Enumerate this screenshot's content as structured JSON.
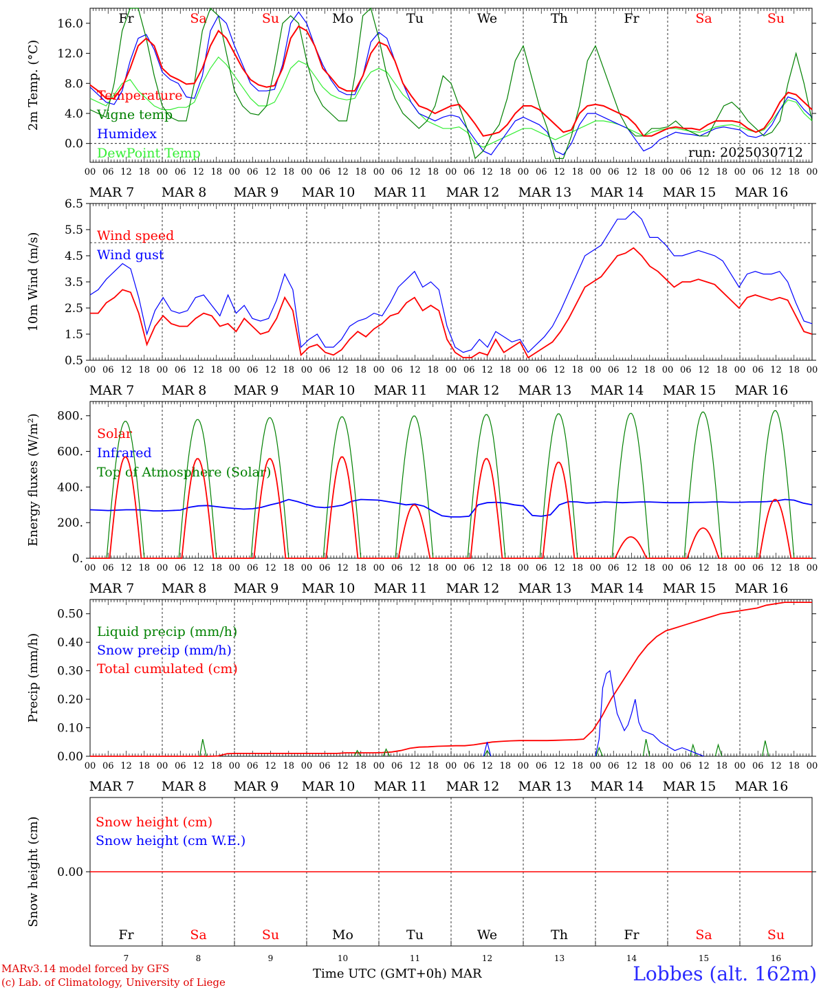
{
  "chart_data": [
    {
      "type": "line",
      "ylabel": "2m Temp. (°C)",
      "ylim": [
        -2.5,
        18
      ],
      "yticks": [
        "16.0",
        "12.0",
        "8.0",
        "4.0",
        "0.0"
      ],
      "ytick_values": [
        16,
        12,
        8,
        4,
        0
      ],
      "reference_line": 0,
      "annotation": "run: 2025030712",
      "series": [
        {
          "name": "Temperature",
          "color": "#ff0000",
          "y": [
            7.8,
            7,
            6,
            6,
            7.5,
            10,
            13,
            14,
            13,
            10,
            9,
            8.5,
            7.9,
            8,
            10,
            13,
            15,
            14,
            12,
            10,
            8.5,
            7.8,
            7.5,
            7.7,
            10,
            14,
            15.6,
            15,
            13,
            10,
            8.8,
            7.5,
            7,
            7,
            9,
            12,
            13.5,
            13,
            11,
            8,
            6.4,
            5,
            4.6,
            4,
            4.5,
            5,
            5.2,
            4,
            2.6,
            1,
            1.2,
            1.5,
            2.5,
            4,
            5,
            5,
            4.5,
            3.5,
            2.5,
            1.5,
            1.8,
            4,
            5,
            5.2,
            5,
            4.5,
            4,
            3.5,
            2.5,
            1,
            1,
            1.5,
            2,
            2.2,
            2,
            2,
            1.8,
            2.5,
            3,
            3,
            3,
            2.8,
            2,
            1.5,
            2,
            3.5,
            5.5,
            6.8,
            6.5,
            5.5,
            4.5
          ]
        },
        {
          "name": "Vigne temp",
          "color": "#008000",
          "y": [
            4.5,
            4,
            3.5,
            8,
            15,
            18,
            18,
            14,
            9,
            5,
            3.5,
            3,
            3,
            8,
            15,
            18,
            17,
            12,
            7,
            5,
            4,
            3.8,
            5,
            10,
            16,
            17,
            16,
            11,
            7,
            5,
            4,
            3,
            3,
            9,
            17,
            18,
            14,
            9,
            6,
            4,
            3,
            2,
            3,
            5,
            9,
            8,
            5,
            2,
            -2,
            -1,
            1,
            2.5,
            6,
            11,
            13,
            9,
            5,
            2,
            -2,
            -2,
            1,
            5,
            11,
            13,
            10,
            7,
            4,
            2,
            1,
            1,
            2,
            2,
            2.2,
            3,
            2,
            1.5,
            1,
            1,
            3,
            5,
            5.5,
            4.5,
            3,
            2,
            1,
            1.5,
            3,
            8,
            12,
            8,
            3
          ]
        },
        {
          "name": "Humidex",
          "color": "#0000ff",
          "y": [
            7.5,
            6.5,
            5.5,
            5.2,
            7,
            11,
            14,
            14.5,
            12.5,
            9.5,
            8.5,
            8,
            6.2,
            6,
            9,
            15,
            17,
            16,
            13,
            10.5,
            8,
            7,
            7,
            7.2,
            10.5,
            16,
            17.5,
            16,
            13,
            10.5,
            8.5,
            7,
            6.5,
            6.5,
            9,
            13.5,
            14.8,
            14,
            11,
            8,
            5.5,
            4,
            3.5,
            3,
            3.5,
            3.8,
            3.5,
            2,
            0.5,
            -1,
            -1.5,
            0,
            1.5,
            3,
            3.5,
            3,
            2.5,
            1.5,
            -1,
            -1.5,
            0,
            2.5,
            4,
            4,
            3.5,
            3,
            2.5,
            2,
            0.5,
            -1,
            -0.5,
            0.5,
            1,
            1.5,
            1.3,
            1.2,
            1,
            1.5,
            2,
            2.2,
            2,
            1.8,
            1,
            0.8,
            1.2,
            2.5,
            4.5,
            6.2,
            5.8,
            4.5,
            3.5
          ]
        },
        {
          "name": "DewPoint Temp",
          "color": "#33ee33",
          "y": [
            6,
            5.5,
            5,
            6.5,
            8,
            8.5,
            7,
            6,
            5,
            4.5,
            4.5,
            4.8,
            4.8,
            5.5,
            8,
            10,
            11.5,
            10.5,
            9,
            7.5,
            6,
            5,
            5,
            5.5,
            7.5,
            10,
            11,
            10.5,
            9,
            7.5,
            6.5,
            6,
            5.8,
            6,
            8,
            9.5,
            10,
            9.5,
            8,
            6.5,
            5.5,
            4,
            3,
            2.5,
            2,
            2,
            2.2,
            1.5,
            0,
            -0.5,
            0,
            0.5,
            1,
            1.5,
            2,
            2,
            1.5,
            1,
            0.5,
            1,
            1.5,
            2,
            2.5,
            3,
            3,
            2.8,
            2.5,
            2,
            1.5,
            1,
            1.5,
            1.8,
            2,
            2,
            1.8,
            1.6,
            1.5,
            1.8,
            2.2,
            2.4,
            2.5,
            2.2,
            1.8,
            1.5,
            1.8,
            3,
            4.5,
            5.8,
            5.5,
            4,
            3
          ]
        }
      ]
    },
    {
      "type": "line",
      "ylabel": "10m Wind (m/s)",
      "ylim": [
        0.5,
        6.5
      ],
      "yticks": [
        "6.5",
        "5.5",
        "4.5",
        "3.5",
        "2.5",
        "1.5",
        "0.5"
      ],
      "ytick_values": [
        6.5,
        5.5,
        4.5,
        3.5,
        2.5,
        1.5,
        0.5
      ],
      "reference_line": 5.0,
      "series": [
        {
          "name": "Wind speed",
          "color": "#ff0000",
          "y": [
            2.3,
            2.3,
            2.7,
            2.9,
            3.2,
            3.1,
            2.3,
            1.1,
            1.8,
            2.2,
            1.9,
            1.8,
            1.8,
            2.1,
            2.3,
            2.2,
            1.8,
            1.9,
            1.6,
            2.1,
            1.8,
            1.5,
            1.6,
            2.1,
            2.9,
            2.4,
            0.7,
            1.0,
            1.1,
            0.8,
            0.7,
            0.9,
            1.3,
            1.6,
            1.4,
            1.7,
            1.9,
            2.2,
            2.3,
            2.7,
            2.9,
            2.4,
            2.6,
            2.4,
            1.3,
            0.8,
            0.6,
            0.6,
            0.8,
            0.7,
            1.3,
            0.8,
            1.0,
            1.2,
            0.6,
            0.8,
            1.0,
            1.2,
            1.6,
            2.1,
            2.7,
            3.3,
            3.5,
            3.7,
            4.1,
            4.5,
            4.6,
            4.8,
            4.5,
            4.1,
            3.9,
            3.6,
            3.3,
            3.5,
            3.5,
            3.6,
            3.5,
            3.4,
            3.1,
            2.8,
            2.5,
            2.9,
            3.0,
            2.9,
            2.8,
            2.9,
            2.8,
            2.2,
            1.6,
            1.5
          ]
        },
        {
          "name": "Wind gust",
          "color": "#0000ff",
          "y": [
            3.0,
            3.2,
            3.6,
            3.9,
            4.2,
            4.0,
            2.9,
            1.5,
            2.4,
            2.9,
            2.4,
            2.3,
            2.4,
            2.9,
            3.0,
            2.6,
            2.2,
            3.0,
            2.3,
            2.6,
            2.1,
            2.0,
            2.1,
            2.8,
            3.8,
            3.2,
            1.0,
            1.3,
            1.5,
            1.0,
            1.0,
            1.3,
            1.8,
            2.0,
            2.1,
            2.3,
            2.2,
            2.7,
            3.3,
            3.6,
            3.9,
            3.3,
            3.5,
            3.2,
            1.8,
            1.0,
            0.8,
            0.9,
            1.3,
            1.0,
            1.6,
            1.4,
            1.2,
            1.3,
            0.8,
            1.1,
            1.4,
            1.8,
            2.4,
            3.1,
            3.8,
            4.5,
            4.7,
            4.9,
            5.4,
            5.9,
            5.9,
            6.2,
            5.9,
            5.2,
            5.2,
            4.9,
            4.5,
            4.5,
            4.6,
            4.7,
            4.6,
            4.5,
            4.3,
            3.8,
            3.3,
            3.8,
            3.9,
            3.8,
            3.8,
            3.9,
            3.5,
            2.7,
            2.0,
            1.9
          ]
        }
      ]
    },
    {
      "type": "line",
      "ylabel": "Energy fluxes (W/m²)",
      "ylim": [
        0,
        880
      ],
      "yticks": [
        "800.",
        "600.",
        "400.",
        "200.",
        "0."
      ],
      "ytick_values": [
        800,
        600,
        400,
        200,
        0
      ],
      "series": [
        {
          "name": "Solar",
          "color": "#ff0000",
          "peaks": [
            570,
            560,
            560,
            570,
            300,
            560,
            540,
            120,
            170,
            330
          ]
        },
        {
          "name": "Infrared",
          "color": "#0000ff",
          "y": [
            272,
            270,
            268,
            270,
            272,
            272,
            270,
            266,
            266,
            268,
            270,
            286,
            294,
            296,
            290,
            284,
            280,
            276,
            278,
            286,
            300,
            312,
            330,
            318,
            302,
            288,
            284,
            290,
            298,
            320,
            330,
            328,
            326,
            318,
            310,
            300,
            304,
            292,
            264,
            238,
            232,
            232,
            236,
            300,
            312,
            314,
            310,
            300,
            294,
            240,
            236,
            244,
            300,
            318,
            316,
            310,
            312,
            316,
            314,
            312,
            314,
            316,
            316,
            314,
            312,
            312,
            312,
            314,
            314,
            316,
            316,
            314,
            314,
            316,
            316,
            318,
            322,
            330,
            326,
            310,
            300
          ]
        },
        {
          "name": "Top of Atmosphere (Solar)",
          "color": "#008000",
          "peaks": [
            770,
            780,
            790,
            795,
            800,
            808,
            812,
            815,
            822,
            830
          ]
        }
      ]
    },
    {
      "type": "line",
      "ylabel": "Precip (mm/h)",
      "ylim": [
        0,
        0.55
      ],
      "yticks": [
        "0.50",
        "0.40",
        "0.30",
        "0.20",
        "0.10",
        "0.00"
      ],
      "ytick_values": [
        0.5,
        0.4,
        0.3,
        0.2,
        0.1,
        0.0
      ],
      "series": [
        {
          "name": "Liquid precip (mm/h)",
          "color": "#008000"
        },
        {
          "name": "Snow precip (mm/h)",
          "color": "#0000ff"
        },
        {
          "name": "Total cumulated (cm)",
          "color": "#ff0000",
          "y": [
            0,
            0,
            0,
            0,
            0,
            0,
            0,
            0,
            0,
            0,
            0,
            0,
            0,
            0,
            0.001,
            0.009,
            0.01,
            0.01,
            0.01,
            0.01,
            0.01,
            0.01,
            0.01,
            0.01,
            0.01,
            0.01,
            0.01,
            0.01,
            0.012,
            0.012,
            0.012,
            0.012,
            0.013,
            0.015,
            0.02,
            0.028,
            0.032,
            0.033,
            0.035,
            0.036,
            0.037,
            0.037,
            0.04,
            0.045,
            0.05,
            0.052,
            0.054,
            0.055,
            0.055,
            0.055,
            0.055,
            0.056,
            0.057,
            0.058,
            0.06,
            0.09,
            0.14,
            0.2,
            0.25,
            0.3,
            0.35,
            0.39,
            0.42,
            0.44,
            0.45,
            0.46,
            0.47,
            0.48,
            0.49,
            0.5,
            0.505,
            0.51,
            0.515,
            0.52,
            0.53,
            0.535,
            0.54,
            0.54,
            0.54,
            0.54
          ]
        }
      ]
    },
    {
      "type": "line",
      "ylabel": "Snow height (cm)",
      "yticks": [
        "0.00"
      ],
      "ytick_values": [
        0
      ],
      "series": [
        {
          "name": "Snow height (cm)",
          "color": "#ff0000",
          "y": [
            0,
            0
          ]
        },
        {
          "name": "Snow height (cm W.E.)",
          "color": "#0000ff"
        }
      ]
    }
  ],
  "x_axis": {
    "hour_ticks": [
      "00",
      "06",
      "12",
      "18"
    ],
    "final_tick": "00",
    "dates": [
      "MAR 7",
      "MAR 8",
      "MAR 9",
      "MAR 10",
      "MAR 11",
      "MAR 12",
      "MAR 13",
      "MAR 14",
      "MAR 15",
      "MAR 16"
    ],
    "day_names": [
      "Fr",
      "Sa",
      "Su",
      "Mo",
      "Tu",
      "We",
      "Th",
      "Fr",
      "Sa",
      "Su"
    ],
    "day_numbers": [
      "7",
      "8",
      "9",
      "10",
      "11",
      "12",
      "13",
      "14",
      "15",
      "16"
    ],
    "weekend_color": "#ff0000"
  },
  "footer": {
    "credit_line1": "MARv3.14 model forced by GFS",
    "credit_line2": "(c) Lab. of Climatology, University of Liege",
    "x_title": "Time UTC (GMT+0h) MAR",
    "station": "Lobbes (alt. 162m)"
  }
}
